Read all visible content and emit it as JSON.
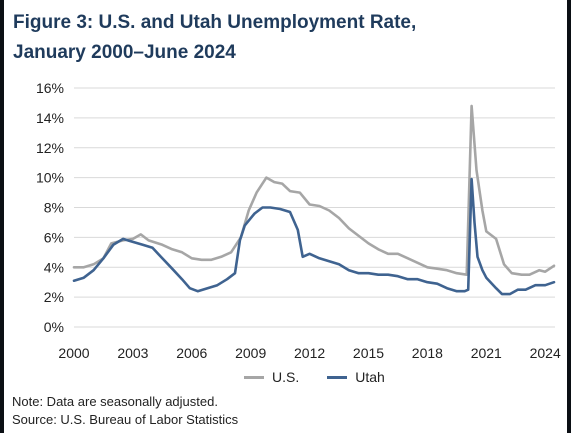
{
  "title_line1": "Figure 3: U.S. and Utah Unemployment Rate,",
  "title_line2": "January 2000–June 2024",
  "note": "Note: Data are seasonally adjusted.",
  "source": "Source: U.S. Bureau of Labor Statistics",
  "colors": {
    "us": "#a6a6a6",
    "utah": "#3f6390",
    "grid": "#d9d9d9",
    "title": "#1f3b5c"
  },
  "chart_data": {
    "type": "line",
    "title": "Figure 3: U.S. and Utah Unemployment Rate, January 2000–June 2024",
    "xlabel": "",
    "ylabel": "",
    "xlim": [
      2000,
      2024.5
    ],
    "ylim": [
      0,
      16
    ],
    "x_ticks": [
      2000,
      2003,
      2006,
      2009,
      2012,
      2015,
      2018,
      2021,
      2024
    ],
    "x_tick_labels": [
      "2000",
      "2003",
      "2006",
      "2009",
      "2012",
      "2015",
      "2018",
      "2021",
      "2024"
    ],
    "y_ticks": [
      0,
      2,
      4,
      6,
      8,
      10,
      12,
      14,
      16
    ],
    "y_tick_labels": [
      "0%",
      "2%",
      "4%",
      "6%",
      "8%",
      "10%",
      "12%",
      "14%",
      "16%"
    ],
    "grid": "horizontal",
    "legend_position": "bottom-center",
    "series": [
      {
        "name": "U.S.",
        "color": "#a6a6a6",
        "points": [
          [
            2000.0,
            4.0
          ],
          [
            2000.5,
            4.0
          ],
          [
            2001.0,
            4.2
          ],
          [
            2001.5,
            4.6
          ],
          [
            2001.9,
            5.6
          ],
          [
            2002.5,
            5.8
          ],
          [
            2003.0,
            5.9
          ],
          [
            2003.4,
            6.2
          ],
          [
            2003.8,
            5.8
          ],
          [
            2004.5,
            5.5
          ],
          [
            2005.0,
            5.2
          ],
          [
            2005.5,
            5.0
          ],
          [
            2006.0,
            4.6
          ],
          [
            2006.5,
            4.5
          ],
          [
            2007.0,
            4.5
          ],
          [
            2007.5,
            4.7
          ],
          [
            2008.0,
            5.0
          ],
          [
            2008.5,
            6.0
          ],
          [
            2008.9,
            7.8
          ],
          [
            2009.3,
            9.0
          ],
          [
            2009.8,
            10.0
          ],
          [
            2010.2,
            9.7
          ],
          [
            2010.6,
            9.6
          ],
          [
            2011.0,
            9.1
          ],
          [
            2011.5,
            9.0
          ],
          [
            2012.0,
            8.2
          ],
          [
            2012.5,
            8.1
          ],
          [
            2013.0,
            7.8
          ],
          [
            2013.5,
            7.3
          ],
          [
            2014.0,
            6.6
          ],
          [
            2014.5,
            6.1
          ],
          [
            2015.0,
            5.6
          ],
          [
            2015.5,
            5.2
          ],
          [
            2016.0,
            4.9
          ],
          [
            2016.5,
            4.9
          ],
          [
            2017.0,
            4.6
          ],
          [
            2017.5,
            4.3
          ],
          [
            2018.0,
            4.0
          ],
          [
            2018.5,
            3.9
          ],
          [
            2019.0,
            3.8
          ],
          [
            2019.5,
            3.6
          ],
          [
            2020.0,
            3.5
          ],
          [
            2020.25,
            14.8
          ],
          [
            2020.5,
            10.5
          ],
          [
            2020.8,
            7.8
          ],
          [
            2021.0,
            6.4
          ],
          [
            2021.5,
            5.9
          ],
          [
            2021.9,
            4.2
          ],
          [
            2022.3,
            3.6
          ],
          [
            2022.8,
            3.5
          ],
          [
            2023.2,
            3.5
          ],
          [
            2023.7,
            3.8
          ],
          [
            2024.0,
            3.7
          ],
          [
            2024.45,
            4.1
          ]
        ]
      },
      {
        "name": "Utah",
        "color": "#3f6390",
        "points": [
          [
            2000.0,
            3.1
          ],
          [
            2000.5,
            3.3
          ],
          [
            2001.0,
            3.8
          ],
          [
            2001.5,
            4.6
          ],
          [
            2002.0,
            5.5
          ],
          [
            2002.5,
            5.9
          ],
          [
            2003.0,
            5.7
          ],
          [
            2003.5,
            5.5
          ],
          [
            2004.0,
            5.3
          ],
          [
            2004.5,
            4.6
          ],
          [
            2005.0,
            3.9
          ],
          [
            2005.5,
            3.2
          ],
          [
            2005.9,
            2.6
          ],
          [
            2006.3,
            2.4
          ],
          [
            2006.8,
            2.6
          ],
          [
            2007.3,
            2.8
          ],
          [
            2007.8,
            3.2
          ],
          [
            2008.2,
            3.6
          ],
          [
            2008.45,
            5.8
          ],
          [
            2008.7,
            6.8
          ],
          [
            2009.2,
            7.6
          ],
          [
            2009.6,
            8.0
          ],
          [
            2010.0,
            8.0
          ],
          [
            2010.5,
            7.9
          ],
          [
            2011.0,
            7.7
          ],
          [
            2011.4,
            6.5
          ],
          [
            2011.65,
            4.7
          ],
          [
            2012.0,
            4.9
          ],
          [
            2012.5,
            4.6
          ],
          [
            2013.0,
            4.4
          ],
          [
            2013.5,
            4.2
          ],
          [
            2014.0,
            3.8
          ],
          [
            2014.5,
            3.6
          ],
          [
            2015.0,
            3.6
          ],
          [
            2015.5,
            3.5
          ],
          [
            2016.0,
            3.5
          ],
          [
            2016.5,
            3.4
          ],
          [
            2017.0,
            3.2
          ],
          [
            2017.5,
            3.2
          ],
          [
            2018.0,
            3.0
          ],
          [
            2018.5,
            2.9
          ],
          [
            2019.0,
            2.6
          ],
          [
            2019.5,
            2.4
          ],
          [
            2019.9,
            2.4
          ],
          [
            2020.08,
            2.5
          ],
          [
            2020.25,
            9.9
          ],
          [
            2020.4,
            7.0
          ],
          [
            2020.55,
            4.7
          ],
          [
            2020.8,
            3.8
          ],
          [
            2021.0,
            3.3
          ],
          [
            2021.5,
            2.6
          ],
          [
            2021.8,
            2.2
          ],
          [
            2022.2,
            2.2
          ],
          [
            2022.6,
            2.5
          ],
          [
            2023.0,
            2.5
          ],
          [
            2023.5,
            2.8
          ],
          [
            2024.0,
            2.8
          ],
          [
            2024.45,
            3.0
          ]
        ]
      }
    ]
  }
}
